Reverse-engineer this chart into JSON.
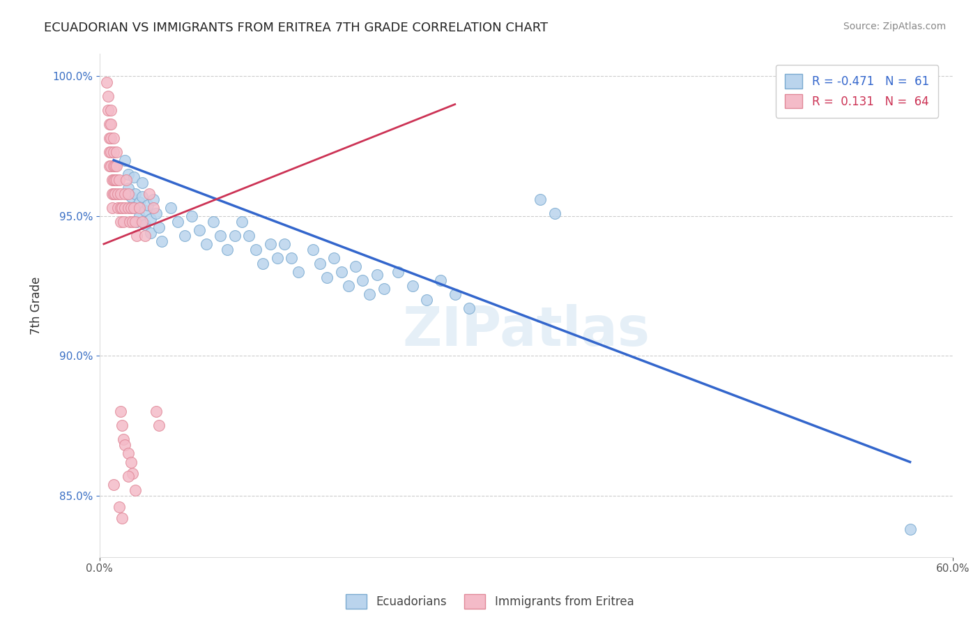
{
  "title": "ECUADORIAN VS IMMIGRANTS FROM ERITREA 7TH GRADE CORRELATION CHART",
  "source": "Source: ZipAtlas.com",
  "ylabel": "7th Grade",
  "xlim": [
    0.0,
    0.6
  ],
  "ylim": [
    0.828,
    1.008
  ],
  "xticks": [
    0.0,
    0.6
  ],
  "xticklabels": [
    "0.0%",
    "60.0%"
  ],
  "yticks": [
    0.85,
    0.9,
    0.95,
    1.0
  ],
  "yticklabels": [
    "85.0%",
    "90.0%",
    "95.0%",
    "100.0%"
  ],
  "blue_color": "#bad4ed",
  "pink_color": "#f4bbc8",
  "blue_edge_color": "#7aaad0",
  "pink_edge_color": "#e08898",
  "blue_line_color": "#3366cc",
  "pink_line_color": "#cc3355",
  "watermark": "ZIPatlas",
  "blue_scatter": [
    [
      0.018,
      0.97
    ],
    [
      0.02,
      0.965
    ],
    [
      0.02,
      0.96
    ],
    [
      0.022,
      0.957
    ],
    [
      0.022,
      0.953
    ],
    [
      0.024,
      0.964
    ],
    [
      0.025,
      0.958
    ],
    [
      0.025,
      0.953
    ],
    [
      0.026,
      0.948
    ],
    [
      0.028,
      0.955
    ],
    [
      0.028,
      0.95
    ],
    [
      0.03,
      0.962
    ],
    [
      0.03,
      0.957
    ],
    [
      0.032,
      0.952
    ],
    [
      0.032,
      0.947
    ],
    [
      0.034,
      0.954
    ],
    [
      0.036,
      0.949
    ],
    [
      0.036,
      0.944
    ],
    [
      0.038,
      0.956
    ],
    [
      0.04,
      0.951
    ],
    [
      0.042,
      0.946
    ],
    [
      0.044,
      0.941
    ],
    [
      0.05,
      0.953
    ],
    [
      0.055,
      0.948
    ],
    [
      0.06,
      0.943
    ],
    [
      0.065,
      0.95
    ],
    [
      0.07,
      0.945
    ],
    [
      0.075,
      0.94
    ],
    [
      0.08,
      0.948
    ],
    [
      0.085,
      0.943
    ],
    [
      0.09,
      0.938
    ],
    [
      0.095,
      0.943
    ],
    [
      0.1,
      0.948
    ],
    [
      0.105,
      0.943
    ],
    [
      0.11,
      0.938
    ],
    [
      0.115,
      0.933
    ],
    [
      0.12,
      0.94
    ],
    [
      0.125,
      0.935
    ],
    [
      0.13,
      0.94
    ],
    [
      0.135,
      0.935
    ],
    [
      0.14,
      0.93
    ],
    [
      0.15,
      0.938
    ],
    [
      0.155,
      0.933
    ],
    [
      0.16,
      0.928
    ],
    [
      0.165,
      0.935
    ],
    [
      0.17,
      0.93
    ],
    [
      0.175,
      0.925
    ],
    [
      0.18,
      0.932
    ],
    [
      0.185,
      0.927
    ],
    [
      0.19,
      0.922
    ],
    [
      0.195,
      0.929
    ],
    [
      0.2,
      0.924
    ],
    [
      0.21,
      0.93
    ],
    [
      0.22,
      0.925
    ],
    [
      0.23,
      0.92
    ],
    [
      0.24,
      0.927
    ],
    [
      0.25,
      0.922
    ],
    [
      0.26,
      0.917
    ],
    [
      0.31,
      0.956
    ],
    [
      0.32,
      0.951
    ],
    [
      0.57,
      0.838
    ]
  ],
  "pink_scatter": [
    [
      0.005,
      0.998
    ],
    [
      0.006,
      0.993
    ],
    [
      0.006,
      0.988
    ],
    [
      0.007,
      0.983
    ],
    [
      0.007,
      0.978
    ],
    [
      0.007,
      0.973
    ],
    [
      0.007,
      0.968
    ],
    [
      0.008,
      0.988
    ],
    [
      0.008,
      0.983
    ],
    [
      0.008,
      0.978
    ],
    [
      0.008,
      0.973
    ],
    [
      0.008,
      0.968
    ],
    [
      0.009,
      0.963
    ],
    [
      0.009,
      0.958
    ],
    [
      0.009,
      0.953
    ],
    [
      0.01,
      0.978
    ],
    [
      0.01,
      0.973
    ],
    [
      0.01,
      0.968
    ],
    [
      0.01,
      0.963
    ],
    [
      0.01,
      0.958
    ],
    [
      0.011,
      0.968
    ],
    [
      0.011,
      0.963
    ],
    [
      0.011,
      0.958
    ],
    [
      0.012,
      0.973
    ],
    [
      0.012,
      0.968
    ],
    [
      0.012,
      0.963
    ],
    [
      0.013,
      0.958
    ],
    [
      0.013,
      0.953
    ],
    [
      0.014,
      0.963
    ],
    [
      0.015,
      0.958
    ],
    [
      0.015,
      0.953
    ],
    [
      0.015,
      0.948
    ],
    [
      0.016,
      0.953
    ],
    [
      0.017,
      0.948
    ],
    [
      0.018,
      0.958
    ],
    [
      0.018,
      0.953
    ],
    [
      0.019,
      0.963
    ],
    [
      0.02,
      0.958
    ],
    [
      0.02,
      0.953
    ],
    [
      0.021,
      0.948
    ],
    [
      0.022,
      0.953
    ],
    [
      0.023,
      0.948
    ],
    [
      0.024,
      0.953
    ],
    [
      0.025,
      0.948
    ],
    [
      0.026,
      0.943
    ],
    [
      0.028,
      0.953
    ],
    [
      0.03,
      0.948
    ],
    [
      0.032,
      0.943
    ],
    [
      0.035,
      0.958
    ],
    [
      0.038,
      0.953
    ],
    [
      0.04,
      0.88
    ],
    [
      0.042,
      0.875
    ],
    [
      0.015,
      0.88
    ],
    [
      0.016,
      0.875
    ],
    [
      0.017,
      0.87
    ],
    [
      0.018,
      0.868
    ],
    [
      0.02,
      0.865
    ],
    [
      0.022,
      0.862
    ],
    [
      0.023,
      0.858
    ],
    [
      0.01,
      0.854
    ],
    [
      0.014,
      0.846
    ],
    [
      0.016,
      0.842
    ],
    [
      0.02,
      0.857
    ],
    [
      0.025,
      0.852
    ]
  ],
  "blue_trend_x": [
    0.01,
    0.57
  ],
  "blue_trend_y": [
    0.97,
    0.862
  ],
  "pink_trend_x": [
    0.003,
    0.25
  ],
  "pink_trend_y": [
    0.94,
    0.99
  ]
}
